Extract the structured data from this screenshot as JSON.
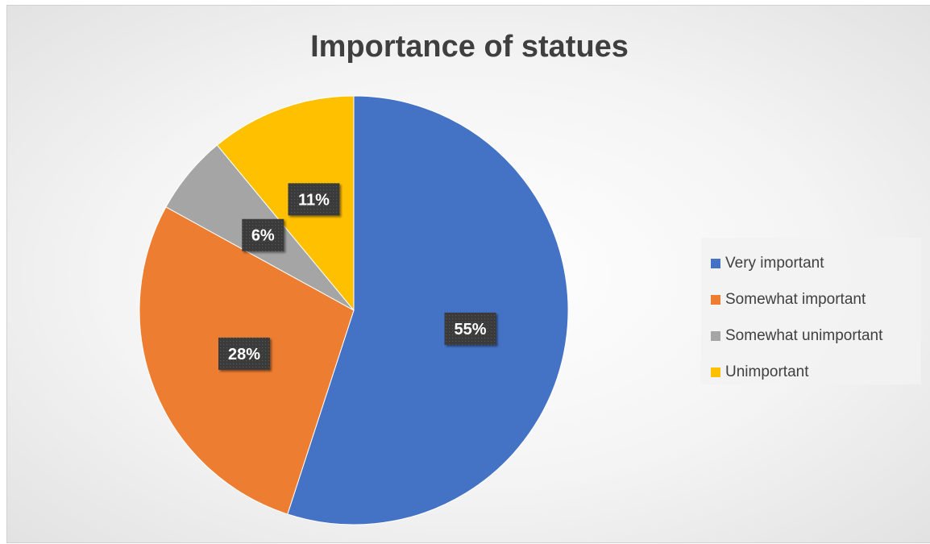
{
  "chart_data": {
    "type": "pie",
    "title": "Importance of statues",
    "legend_position": "right",
    "series": [
      {
        "name": "Very important",
        "value": 55,
        "label": "55%",
        "color": "#4472C4"
      },
      {
        "name": "Somewhat important",
        "value": 28,
        "label": "28%",
        "color": "#ED7D31"
      },
      {
        "name": "Somewhat unimportant",
        "value": 6,
        "label": "6%",
        "color": "#A5A5A5"
      },
      {
        "name": "Unimportant",
        "value": 11,
        "label": "11%",
        "color": "#FFC000"
      }
    ]
  }
}
